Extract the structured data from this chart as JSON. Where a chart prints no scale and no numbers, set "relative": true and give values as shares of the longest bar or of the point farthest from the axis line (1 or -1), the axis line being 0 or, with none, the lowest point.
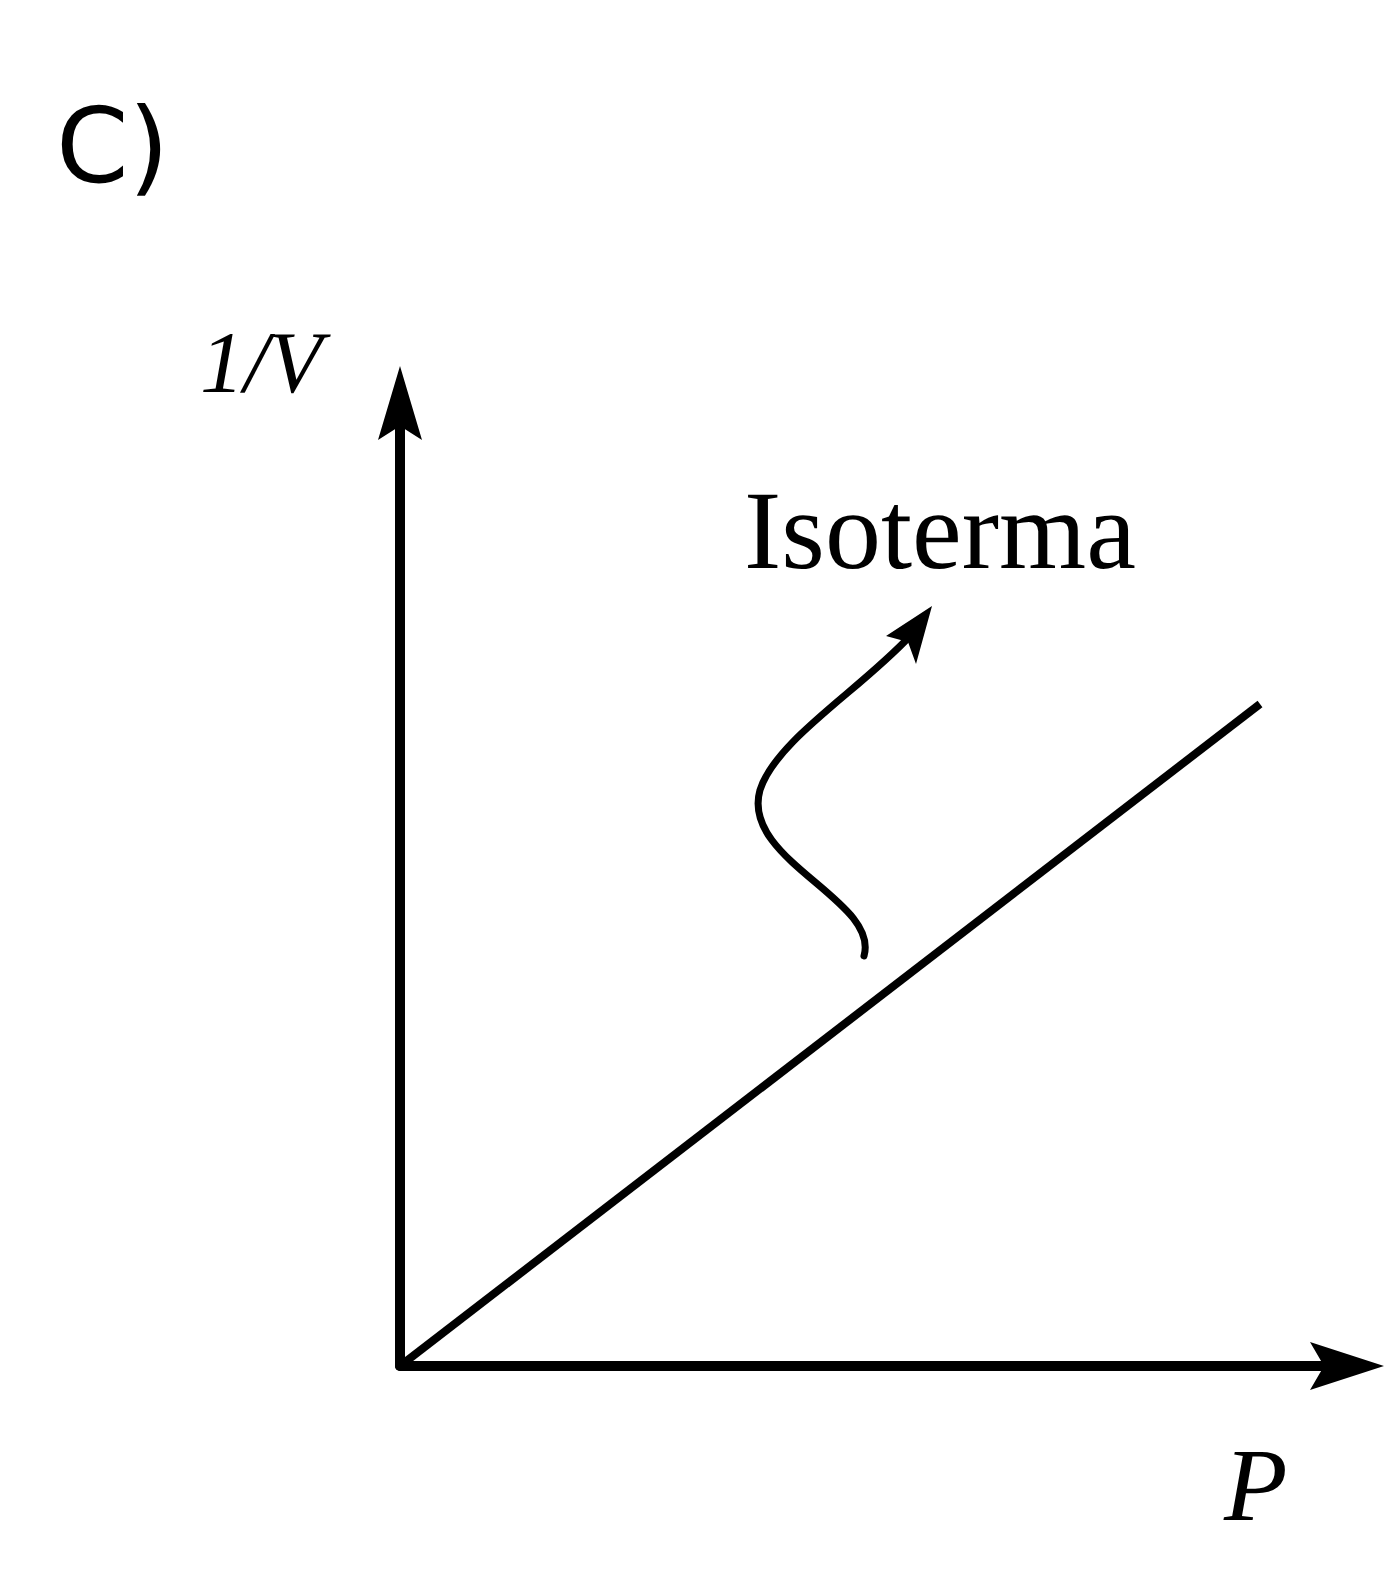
{
  "chart_data": {
    "type": "line",
    "title": "C)",
    "xlabel": "P",
    "ylabel": "1/V",
    "relative": true,
    "categories": [
      null,
      null
    ],
    "series": [
      {
        "color": "#000000",
        "values": [
          0,
          1
        ]
      }
    ],
    "annotations": [
      "Isoterma"
    ],
    "grid": false,
    "legend": false,
    "marker": "none",
    "line_style": "solid"
  }
}
